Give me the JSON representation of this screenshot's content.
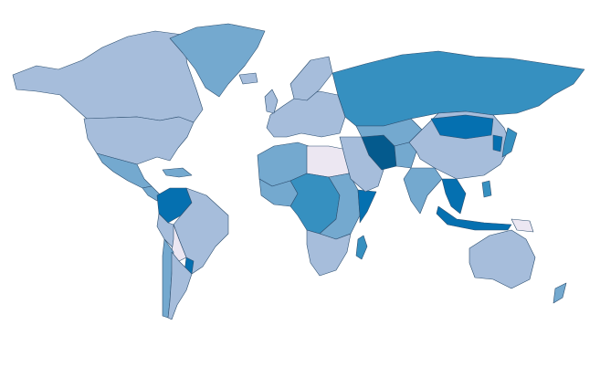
{
  "map": {
    "type": "choropleth",
    "legend": "none",
    "palette": [
      "#ece7f2",
      "#a6bddb",
      "#74a9cf",
      "#3690c0",
      "#0570b0",
      "#045a8d"
    ],
    "no_data_color": "#bdbdbd",
    "regions": {
      "alaska-canada": 1,
      "usa": 1,
      "greenland": 2,
      "mexico": 2,
      "central-america": 2,
      "caribbean": 2,
      "colombia-venezuela": 4,
      "brazil-north": 1,
      "peru": 1,
      "bolivia": 0,
      "paraguay": 4,
      "chile-argentina": 2,
      "argentina": 1,
      "europe": 1,
      "scandinavia": 1,
      "russia": 3,
      "iceland": 1,
      "uk": 1,
      "north-africa-west": 2,
      "libya-egypt": 0,
      "west-africa": 2,
      "central-africa": 3,
      "east-africa": 2,
      "horn-somalia": 4,
      "southern-africa": 1,
      "madagascar": 3,
      "middle-east": 1,
      "iran": 5,
      "central-asia": 2,
      "afghanistan-pakistan": 2,
      "china": 1,
      "mongolia": 4,
      "india": 2,
      "southeast-asia": 4,
      "indonesia": 4,
      "japan": 3,
      "korea": 4,
      "australia": 1,
      "new-zealand": 2,
      "png": 0,
      "philippines": 3
    }
  }
}
